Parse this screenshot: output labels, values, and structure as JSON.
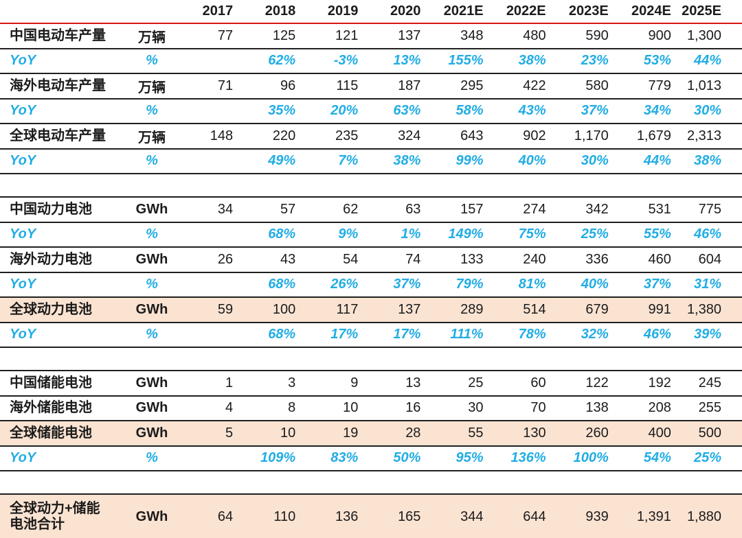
{
  "colors": {
    "accent_cyan": "#21ade4",
    "highlight_peach": "#fbe3d2",
    "header_rule_red": "#d6150f",
    "grid_line": "#1f1f1f",
    "text": "#1b1b1b"
  },
  "chart_data": {
    "type": "table",
    "columns": [
      "2017",
      "2018",
      "2019",
      "2020",
      "2021E",
      "2022E",
      "2023E",
      "2024E",
      "2025E"
    ],
    "rows": [
      {
        "style": "data",
        "label": "中国电动车产量",
        "unit": "万辆",
        "values": [
          "77",
          "125",
          "121",
          "137",
          "348",
          "480",
          "590",
          "900",
          "1,300"
        ]
      },
      {
        "style": "yoy",
        "label": "YoY",
        "unit": "%",
        "values": [
          "",
          "62%",
          "-3%",
          "13%",
          "155%",
          "38%",
          "23%",
          "53%",
          "44%"
        ]
      },
      {
        "style": "data",
        "label": "海外电动车产量",
        "unit": "万辆",
        "values": [
          "71",
          "96",
          "115",
          "187",
          "295",
          "422",
          "580",
          "779",
          "1,013"
        ]
      },
      {
        "style": "yoy",
        "label": "YoY",
        "unit": "%",
        "values": [
          "",
          "35%",
          "20%",
          "63%",
          "58%",
          "43%",
          "37%",
          "34%",
          "30%"
        ]
      },
      {
        "style": "data",
        "label": "全球电动车产量",
        "unit": "万辆",
        "values": [
          "148",
          "220",
          "235",
          "324",
          "643",
          "902",
          "1,170",
          "1,679",
          "2,313"
        ]
      },
      {
        "style": "yoy",
        "label": "YoY",
        "unit": "%",
        "values": [
          "",
          "49%",
          "7%",
          "38%",
          "99%",
          "40%",
          "30%",
          "44%",
          "38%"
        ]
      },
      {
        "style": "gap"
      },
      {
        "style": "data",
        "label": "中国动力电池",
        "unit": "GWh",
        "values": [
          "34",
          "57",
          "62",
          "63",
          "157",
          "274",
          "342",
          "531",
          "775"
        ]
      },
      {
        "style": "yoy",
        "label": "YoY",
        "unit": "%",
        "values": [
          "",
          "68%",
          "9%",
          "1%",
          "149%",
          "75%",
          "25%",
          "55%",
          "46%"
        ]
      },
      {
        "style": "data",
        "label": "海外动力电池",
        "unit": "GWh",
        "values": [
          "26",
          "43",
          "54",
          "74",
          "133",
          "240",
          "336",
          "460",
          "604"
        ]
      },
      {
        "style": "yoy",
        "label": "YoY",
        "unit": "%",
        "values": [
          "",
          "68%",
          "26%",
          "37%",
          "79%",
          "81%",
          "40%",
          "37%",
          "31%"
        ]
      },
      {
        "style": "data",
        "highlight": true,
        "label": "全球动力电池",
        "unit": "GWh",
        "values": [
          "59",
          "100",
          "117",
          "137",
          "289",
          "514",
          "679",
          "991",
          "1,380"
        ]
      },
      {
        "style": "yoy",
        "label": "YoY",
        "unit": "%",
        "values": [
          "",
          "68%",
          "17%",
          "17%",
          "111%",
          "78%",
          "32%",
          "46%",
          "39%"
        ]
      },
      {
        "style": "gap"
      },
      {
        "style": "data",
        "label": "中国储能电池",
        "unit": "GWh",
        "values": [
          "1",
          "3",
          "9",
          "13",
          "25",
          "60",
          "122",
          "192",
          "245"
        ]
      },
      {
        "style": "data",
        "label": "海外储能电池",
        "unit": "GWh",
        "values": [
          "4",
          "8",
          "10",
          "16",
          "30",
          "70",
          "138",
          "208",
          "255"
        ]
      },
      {
        "style": "data",
        "highlight": true,
        "label": "全球储能电池",
        "unit": "GWh",
        "values": [
          "5",
          "10",
          "19",
          "28",
          "55",
          "130",
          "260",
          "400",
          "500"
        ]
      },
      {
        "style": "yoy",
        "label": "YoY",
        "unit": "%",
        "values": [
          "",
          "109%",
          "83%",
          "50%",
          "95%",
          "136%",
          "100%",
          "54%",
          "25%"
        ]
      },
      {
        "style": "gap"
      },
      {
        "style": "data",
        "highlight": true,
        "tall": true,
        "label": "全球动力+储能\n电池合计",
        "unit": "GWh",
        "values": [
          "64",
          "110",
          "136",
          "165",
          "344",
          "644",
          "939",
          "1,391",
          "1,880"
        ]
      }
    ]
  }
}
